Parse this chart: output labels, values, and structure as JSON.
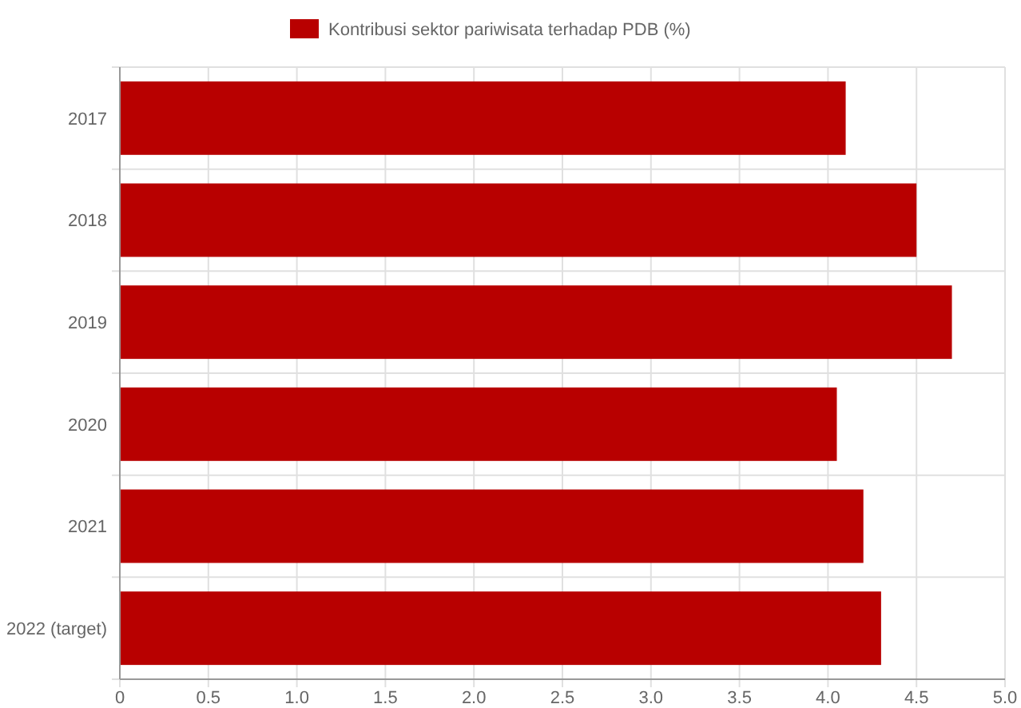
{
  "chart_data": {
    "type": "bar",
    "orientation": "horizontal",
    "categories": [
      "2017",
      "2018",
      "2019",
      "2020",
      "2021",
      "2022 (target)"
    ],
    "series": [
      {
        "name": "Kontribusi sektor pariwisata terhadap PDB (%)",
        "color": "#b80000",
        "values": [
          4.1,
          4.5,
          4.7,
          4.05,
          4.2,
          4.3
        ]
      }
    ],
    "xlim": [
      0,
      5
    ],
    "xticks": [
      {
        "value": 0,
        "label": "0"
      },
      {
        "value": 0.5,
        "label": "0.5"
      },
      {
        "value": 1,
        "label": "1.0"
      },
      {
        "value": 1.5,
        "label": "1.5"
      },
      {
        "value": 2,
        "label": "2.0"
      },
      {
        "value": 2.5,
        "label": "2.5"
      },
      {
        "value": 3,
        "label": "3.0"
      },
      {
        "value": 3.5,
        "label": "3.5"
      },
      {
        "value": 4,
        "label": "4.0"
      },
      {
        "value": 4.5,
        "label": "4.5"
      },
      {
        "value": 5,
        "label": "5.0"
      }
    ],
    "grid": true,
    "legend": "top"
  }
}
